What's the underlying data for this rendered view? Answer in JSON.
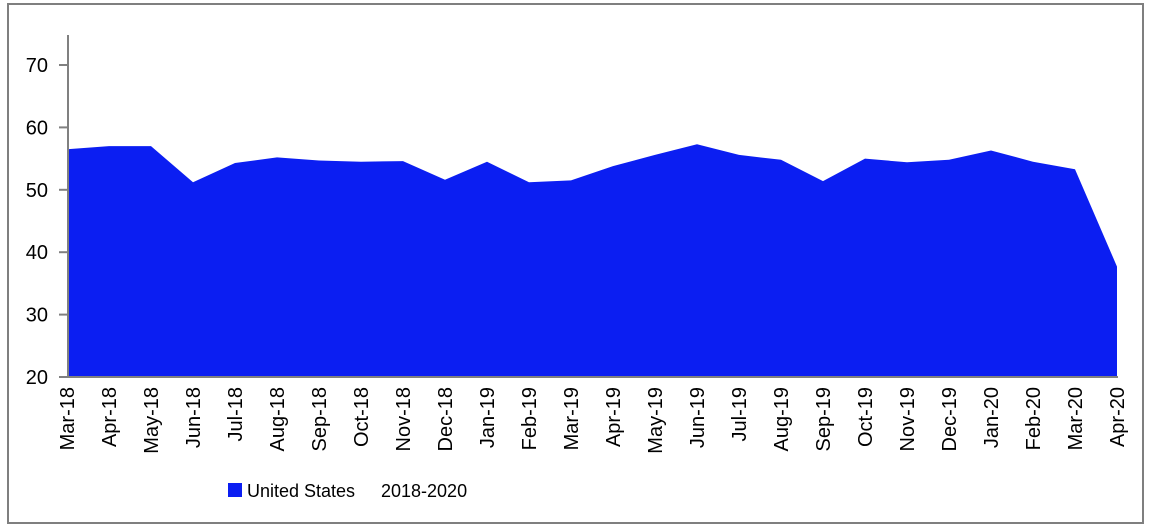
{
  "chart_data": {
    "type": "area",
    "title": "",
    "categories": [
      "Mar-18",
      "Apr-18",
      "May-18",
      "Jun-18",
      "Jul-18",
      "Aug-18",
      "Sep-18",
      "Oct-18",
      "Nov-18",
      "Dec-18",
      "Jan-19",
      "Feb-19",
      "Mar-19",
      "Apr-19",
      "May-19",
      "Jun-19",
      "Jul-19",
      "Aug-19",
      "Sep-19",
      "Oct-19",
      "Nov-19",
      "Dec-19",
      "Jan-20",
      "Feb-20",
      "Mar-20",
      "Apr-20"
    ],
    "series": [
      {
        "name": "United States",
        "color": "#0b1ef2",
        "values": [
          56.5,
          57.0,
          57.0,
          51.2,
          54.3,
          55.2,
          54.7,
          54.5,
          54.6,
          51.6,
          54.5,
          51.2,
          51.5,
          53.8,
          55.6,
          57.3,
          55.6,
          54.8,
          51.4,
          55.0,
          54.4,
          54.8,
          56.3,
          54.5,
          53.3,
          37.7
        ]
      }
    ],
    "xlabel": "",
    "ylabel": "",
    "ylim": [
      20,
      75
    ],
    "yticks": [
      20,
      30,
      40,
      50,
      60,
      70
    ],
    "grid": false,
    "legend_position": "bottom",
    "axis_color": "#808080",
    "text_color": "#000000",
    "background": "#ffffff"
  },
  "legend": {
    "series_label": "United States",
    "period_label": "2018-2020",
    "swatch_color": "#0b1ef2"
  }
}
